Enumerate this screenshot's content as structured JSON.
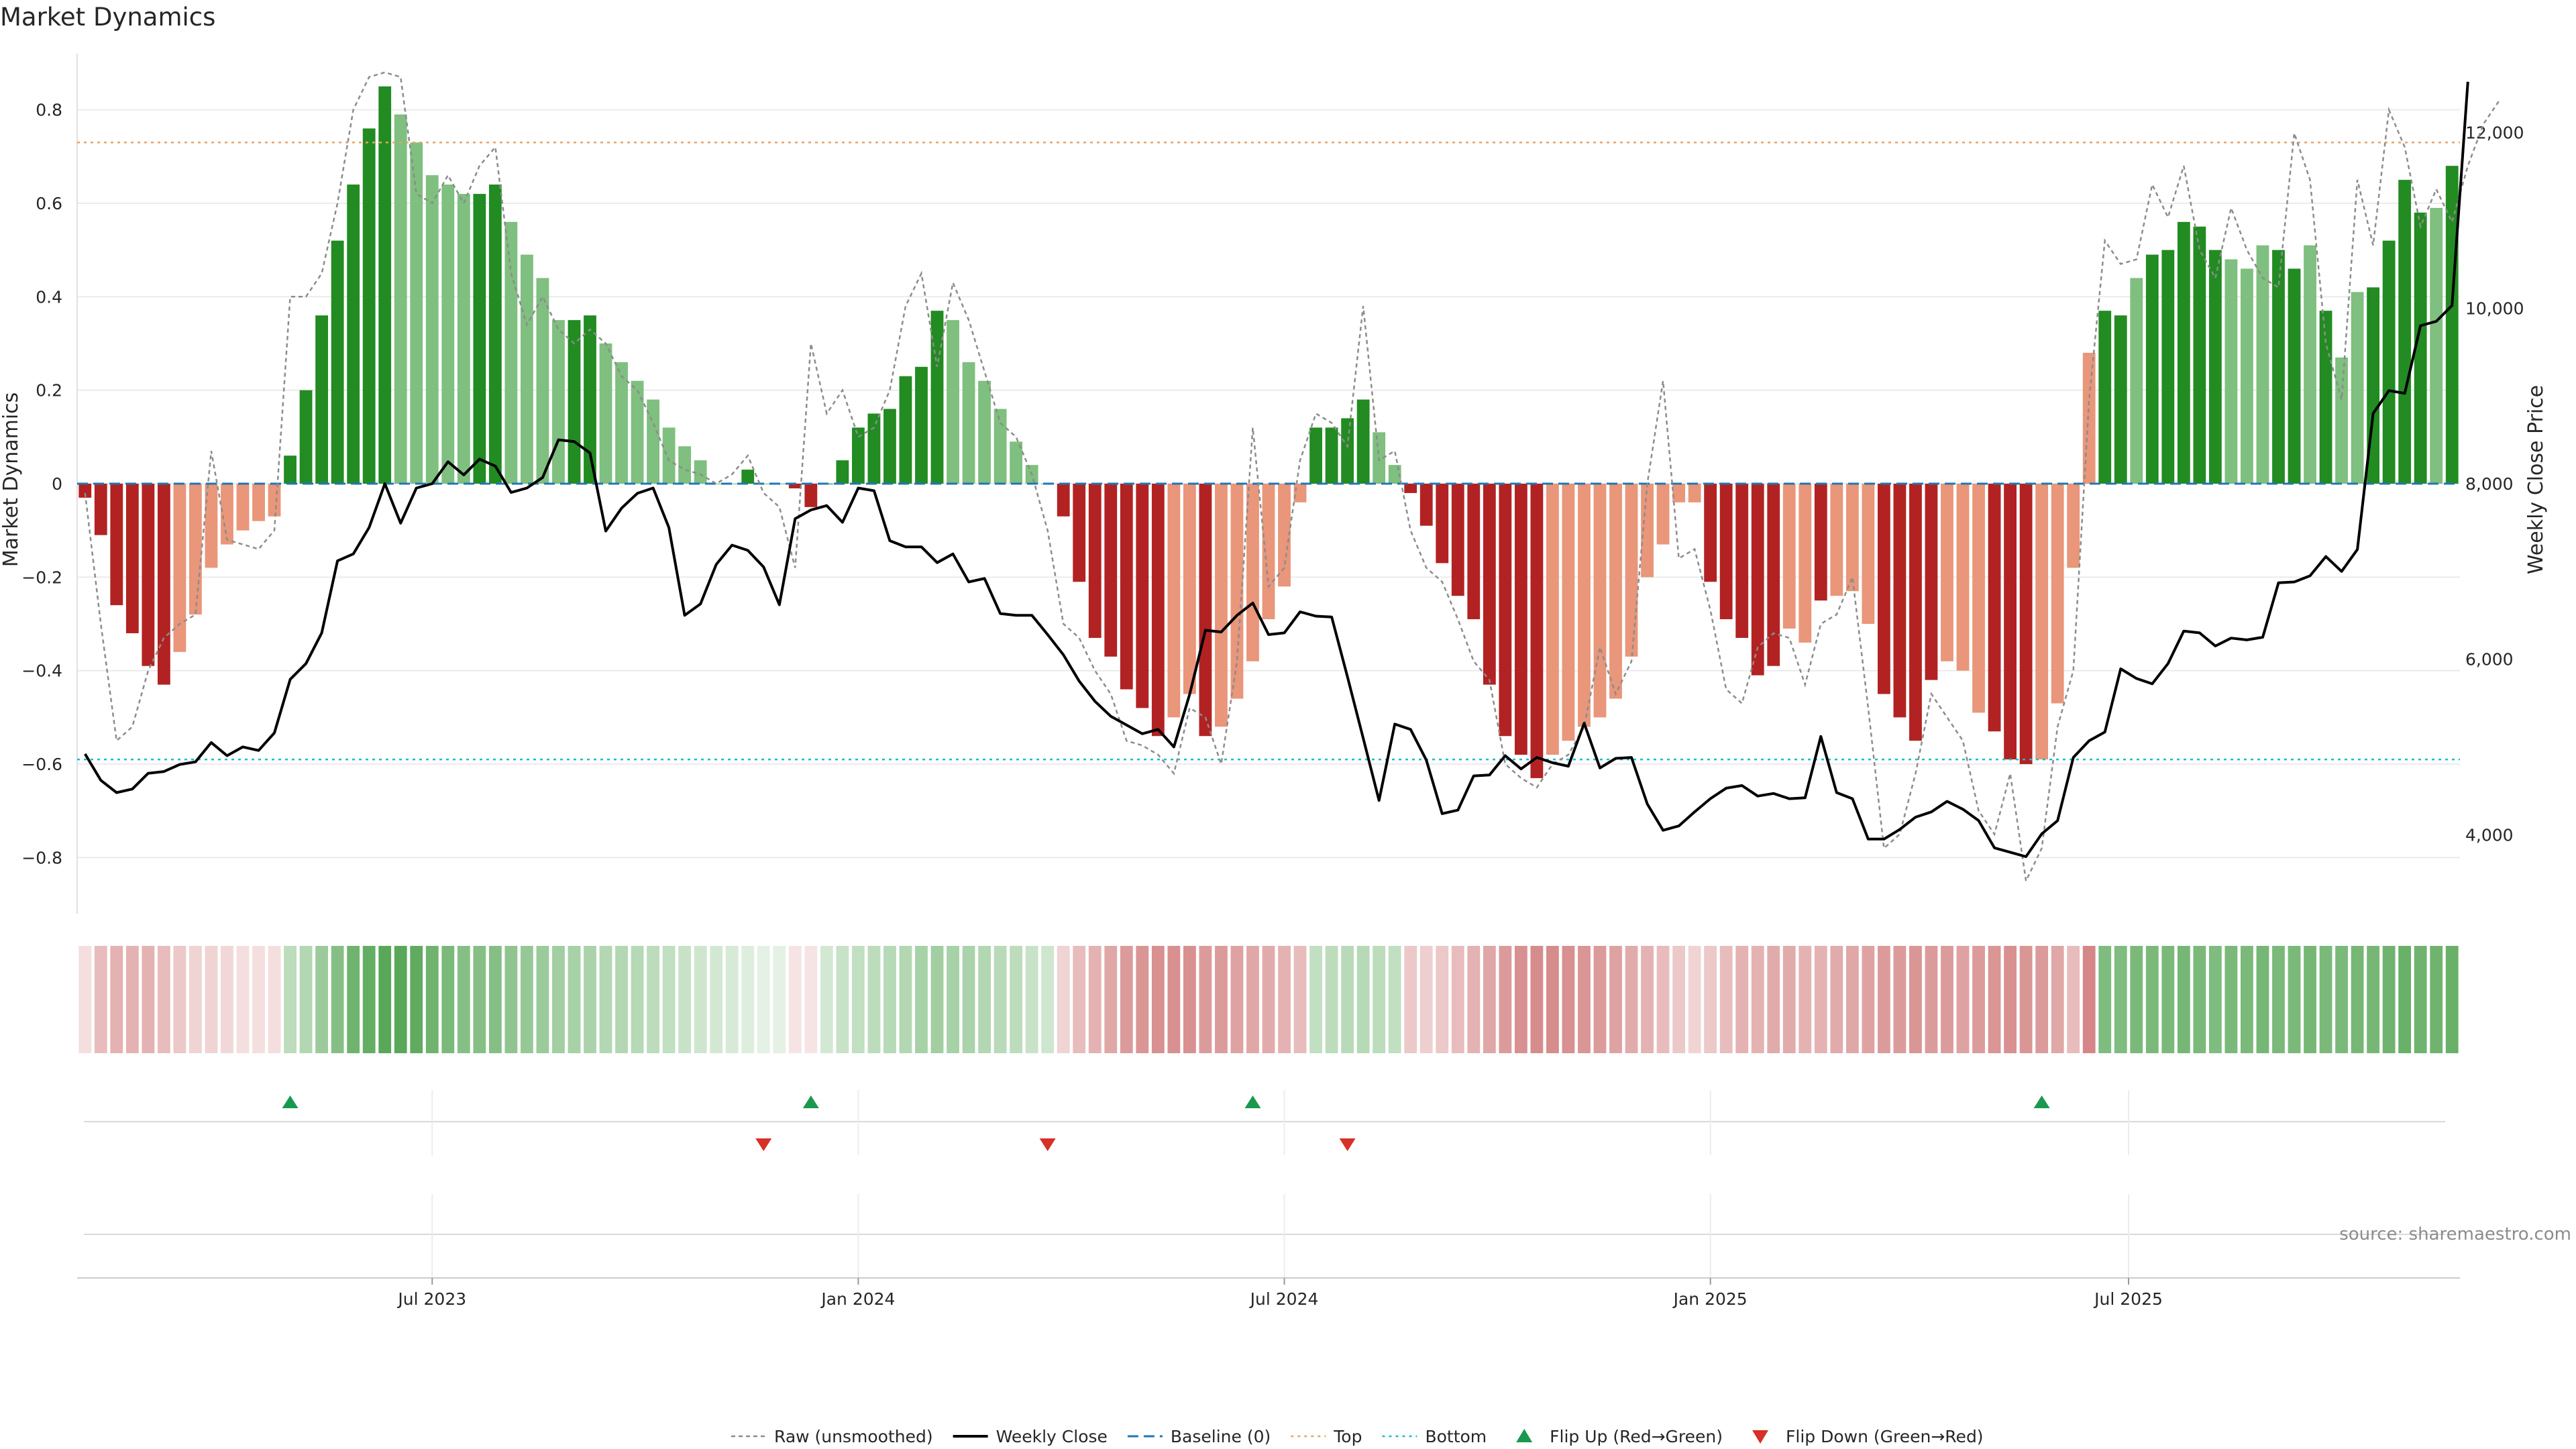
{
  "title": "Market Dynamics",
  "source_note": "source: sharemaestro.com",
  "colors": {
    "strong_green": "#228b22",
    "light_green": "#7fbf7f",
    "strong_red": "#b22222",
    "light_red": "#e9967a",
    "raw_line": "#8c8c8c",
    "close_line": "#000000",
    "baseline": "#1f77b4",
    "top": "#e4a46a",
    "bottom": "#17becf",
    "flip_up": "#1a9850",
    "flip_down": "#d73027"
  },
  "chart_data": {
    "type": "bar",
    "ylabel": "Market Dynamics",
    "y2label": "Weekly Close Price",
    "ylim": [
      -0.92,
      0.92
    ],
    "y2lim": [
      3100,
      12900
    ],
    "yticks": [
      -0.8,
      -0.6,
      -0.4,
      -0.2,
      0,
      0.2,
      0.4,
      0.6,
      0.8
    ],
    "ytick_labels": [
      "−0.8",
      "−0.6",
      "−0.4",
      "−0.2",
      "0",
      "0.2",
      "0.4",
      "0.6",
      "0.8"
    ],
    "y2ticks": [
      4000,
      6000,
      8000,
      10000,
      12000
    ],
    "y2tick_labels": [
      "4,000",
      "6,000",
      "8,000",
      "10,000",
      "12,000"
    ],
    "x_tick_labels": [
      "Jul 2023",
      "Jan 2024",
      "Jul 2024",
      "Jan 2025",
      "Jul 2025"
    ],
    "x_tick_weeks": [
      22.5,
      49.5,
      76.5,
      103.5,
      130
    ],
    "top_level": 0.73,
    "bottom_level": -0.59,
    "baseline": 0,
    "values": [
      -0.03,
      -0.11,
      -0.26,
      -0.32,
      -0.39,
      -0.43,
      -0.36,
      -0.28,
      -0.18,
      -0.13,
      -0.1,
      -0.08,
      -0.07,
      0.06,
      0.2,
      0.36,
      0.52,
      0.64,
      0.76,
      0.85,
      0.79,
      0.73,
      0.66,
      0.64,
      0.62,
      0.62,
      0.64,
      0.56,
      0.49,
      0.44,
      0.35,
      0.35,
      0.36,
      0.3,
      0.26,
      0.22,
      0.18,
      0.12,
      0.08,
      0.05,
      0,
      0,
      0.03,
      0,
      0,
      -0.01,
      -0.05,
      0,
      0.05,
      0.12,
      0.15,
      0.16,
      0.23,
      0.25,
      0.37,
      0.35,
      0.26,
      0.22,
      0.16,
      0.09,
      0.04,
      0,
      -0.07,
      -0.21,
      -0.33,
      -0.37,
      -0.44,
      -0.48,
      -0.54,
      -0.5,
      -0.45,
      -0.54,
      -0.52,
      -0.46,
      -0.38,
      -0.29,
      -0.22,
      -0.04,
      0.12,
      0.12,
      0.14,
      0.18,
      0.11,
      0.04,
      -0.02,
      -0.09,
      -0.17,
      -0.24,
      -0.29,
      -0.43,
      -0.54,
      -0.58,
      -0.63,
      -0.58,
      -0.55,
      -0.52,
      -0.5,
      -0.46,
      -0.37,
      -0.2,
      -0.13,
      -0.04,
      -0.04,
      -0.21,
      -0.29,
      -0.33,
      -0.41,
      -0.39,
      -0.31,
      -0.34,
      -0.25,
      -0.24,
      -0.23,
      -0.3,
      -0.45,
      -0.5,
      -0.55,
      -0.42,
      -0.38,
      -0.4,
      -0.49,
      -0.53,
      -0.59,
      -0.6,
      -0.59,
      -0.47,
      -0.18,
      0.28,
      0.37,
      0.36,
      0.44,
      0.49,
      0.5,
      0.56,
      0.55,
      0.5,
      0.48,
      0.46,
      0.51,
      0.5,
      0.46,
      0.51,
      0.37,
      0.27,
      0.41,
      0.42,
      0.52,
      0.65,
      0.58,
      0.59,
      0.68
    ],
    "colors": [
      "SR",
      "SR",
      "SR",
      "SR",
      "SR",
      "SR",
      "LR",
      "LR",
      "LR",
      "LR",
      "LR",
      "LR",
      "LR",
      "SG",
      "SG",
      "SG",
      "SG",
      "SG",
      "SG",
      "SG",
      "LG",
      "LG",
      "LG",
      "LG",
      "LG",
      "SG",
      "SG",
      "LG",
      "LG",
      "LG",
      "LG",
      "SG",
      "SG",
      "LG",
      "LG",
      "LG",
      "LG",
      "LG",
      "LG",
      "LG",
      "LG",
      "LG",
      "SG",
      "LG",
      "LG",
      "SR",
      "SR",
      "SG",
      "SG",
      "SG",
      "SG",
      "SG",
      "SG",
      "SG",
      "SG",
      "LG",
      "LG",
      "LG",
      "LG",
      "LG",
      "LG",
      "LG",
      "SR",
      "SR",
      "SR",
      "SR",
      "SR",
      "SR",
      "SR",
      "LR",
      "LR",
      "SR",
      "LR",
      "LR",
      "LR",
      "LR",
      "LR",
      "LR",
      "SG",
      "SG",
      "SG",
      "SG",
      "LG",
      "LG",
      "SR",
      "SR",
      "SR",
      "SR",
      "SR",
      "SR",
      "SR",
      "SR",
      "SR",
      "LR",
      "LR",
      "LR",
      "LR",
      "LR",
      "LR",
      "LR",
      "LR",
      "LR",
      "LR",
      "SR",
      "SR",
      "SR",
      "SR",
      "SR",
      "LR",
      "LR",
      "SR",
      "LR",
      "LR",
      "LR",
      "SR",
      "SR",
      "SR",
      "SR",
      "LR",
      "LR",
      "LR",
      "SR",
      "SR",
      "SR",
      "LR",
      "LR",
      "LR",
      "LR",
      "SG",
      "SG",
      "LG",
      "SG",
      "SG",
      "SG",
      "SG",
      "SG",
      "LG",
      "LG",
      "LG",
      "SG",
      "SG",
      "LG",
      "SG",
      "LG",
      "LG",
      "SG",
      "SG",
      "SG",
      "SG",
      "LG",
      "SG",
      "SG"
    ],
    "raw_values": [
      -0.02,
      -0.3,
      -0.55,
      -0.52,
      -0.4,
      -0.33,
      -0.3,
      -0.28,
      0.07,
      -0.12,
      -0.13,
      -0.14,
      -0.1,
      0.4,
      0.4,
      0.45,
      0.6,
      0.8,
      0.87,
      0.88,
      0.87,
      0.62,
      0.6,
      0.66,
      0.6,
      0.68,
      0.72,
      0.45,
      0.34,
      0.4,
      0.33,
      0.3,
      0.33,
      0.3,
      0.23,
      0.2,
      0.13,
      0.05,
      0.03,
      0.02,
      0.0,
      0.02,
      0.06,
      -0.02,
      -0.05,
      -0.18,
      0.3,
      0.15,
      0.2,
      0.1,
      0.12,
      0.2,
      0.38,
      0.45,
      0.25,
      0.43,
      0.35,
      0.24,
      0.13,
      0.1,
      0.02,
      -0.1,
      -0.3,
      -0.33,
      -0.4,
      -0.45,
      -0.55,
      -0.56,
      -0.58,
      -0.62,
      -0.48,
      -0.5,
      -0.6,
      -0.38,
      0.12,
      -0.22,
      -0.18,
      0.05,
      0.15,
      0.13,
      0.08,
      0.38,
      0.05,
      0.07,
      -0.1,
      -0.18,
      -0.21,
      -0.29,
      -0.38,
      -0.42,
      -0.6,
      -0.63,
      -0.65,
      -0.6,
      -0.58,
      -0.52,
      -0.35,
      -0.45,
      -0.38,
      0.0,
      0.22,
      -0.16,
      -0.14,
      -0.27,
      -0.44,
      -0.47,
      -0.35,
      -0.32,
      -0.33,
      -0.43,
      -0.3,
      -0.28,
      -0.2,
      -0.48,
      -0.78,
      -0.75,
      -0.62,
      -0.45,
      -0.5,
      -0.55,
      -0.7,
      -0.75,
      -0.62,
      -0.85,
      -0.78,
      -0.52,
      -0.4,
      0.18,
      0.52,
      0.47,
      0.48,
      0.64,
      0.57,
      0.68,
      0.5,
      0.44,
      0.59,
      0.5,
      0.44,
      0.42,
      0.75,
      0.65,
      0.3,
      0.18,
      0.65,
      0.51,
      0.8,
      0.72,
      0.55,
      0.63,
      0.56,
      0.68,
      0.77,
      0.82
    ],
    "close_values": [
      4920,
      4620,
      4480,
      4520,
      4700,
      4720,
      4800,
      4830,
      5050,
      4900,
      5000,
      4960,
      5160,
      5770,
      5950,
      6300,
      7120,
      7200,
      7500,
      8000,
      7550,
      7950,
      8000,
      8250,
      8100,
      8280,
      8200,
      7900,
      7950,
      8070,
      8500,
      8480,
      8350,
      7460,
      7720,
      7890,
      7950,
      7500,
      6500,
      6630,
      7080,
      7300,
      7240,
      7050,
      6620,
      7600,
      7700,
      7750,
      7560,
      7950,
      7920,
      7350,
      7280,
      7280,
      7100,
      7200,
      6880,
      6920,
      6520,
      6500,
      6500,
      6280,
      6050,
      5750,
      5520,
      5350,
      5250,
      5150,
      5200,
      5000,
      5600,
      6330,
      6310,
      6500,
      6640,
      6280,
      6300,
      6540,
      6490,
      6480,
      5800,
      5100,
      4390,
      5260,
      5200,
      4850,
      4240,
      4280,
      4670,
      4680,
      4900,
      4750,
      4880,
      4820,
      4780,
      5270,
      4760,
      4870,
      4880,
      4350,
      4050,
      4100,
      4260,
      4410,
      4530,
      4560,
      4440,
      4470,
      4410,
      4420,
      5120,
      4480,
      4410,
      3950,
      3950,
      4060,
      4200,
      4260,
      4380,
      4290,
      4160,
      3850,
      3800,
      3750,
      4010,
      4160,
      4880,
      5070,
      5170,
      5890,
      5780,
      5720,
      5950,
      6320,
      6300,
      6150,
      6240,
      6220,
      6250,
      6870,
      6880,
      6950,
      7170,
      7000,
      7250,
      8800,
      9060,
      9030,
      9800,
      9850,
      10030,
      12580
    ],
    "regime_levels": [
      0.15,
      0.3,
      0.35,
      0.35,
      0.35,
      0.3,
      0.25,
      0.2,
      0.2,
      0.18,
      0.15,
      0.15,
      0.15,
      0.3,
      0.35,
      0.45,
      0.55,
      0.65,
      0.7,
      0.75,
      0.75,
      0.72,
      0.65,
      0.6,
      0.55,
      0.55,
      0.55,
      0.5,
      0.48,
      0.45,
      0.42,
      0.4,
      0.38,
      0.35,
      0.35,
      0.33,
      0.3,
      0.28,
      0.25,
      0.22,
      0.2,
      0.18,
      0.15,
      0.12,
      0.12,
      0.12,
      0.12,
      0.2,
      0.25,
      0.28,
      0.3,
      0.33,
      0.35,
      0.4,
      0.42,
      0.4,
      0.38,
      0.35,
      0.32,
      0.3,
      0.25,
      0.22,
      0.2,
      0.3,
      0.35,
      0.4,
      0.45,
      0.48,
      0.5,
      0.5,
      0.5,
      0.45,
      0.45,
      0.42,
      0.4,
      0.38,
      0.35,
      0.3,
      0.28,
      0.3,
      0.32,
      0.33,
      0.3,
      0.28,
      0.25,
      0.22,
      0.25,
      0.3,
      0.35,
      0.4,
      0.45,
      0.5,
      0.52,
      0.52,
      0.5,
      0.48,
      0.45,
      0.42,
      0.38,
      0.35,
      0.3,
      0.25,
      0.2,
      0.25,
      0.3,
      0.35,
      0.35,
      0.38,
      0.38,
      0.35,
      0.35,
      0.38,
      0.4,
      0.42,
      0.45,
      0.45,
      0.48,
      0.45,
      0.45,
      0.42,
      0.45,
      0.48,
      0.5,
      0.48,
      0.45,
      0.4,
      0.3,
      0.55,
      0.58,
      0.58,
      0.6,
      0.6,
      0.6,
      0.62,
      0.6,
      0.58,
      0.6,
      0.6,
      0.62,
      0.6,
      0.6,
      0.62,
      0.6,
      0.6,
      0.62,
      0.62,
      0.65,
      0.68,
      0.65,
      0.65,
      0.68
    ],
    "flip_up_weeks": [
      13,
      46,
      74,
      124
    ],
    "flip_down_weeks": [
      43,
      61,
      80
    ],
    "legend": [
      {
        "label": "Raw (unsmoothed)",
        "kind": "raw"
      },
      {
        "label": "Weekly Close",
        "kind": "close"
      },
      {
        "label": "Baseline (0)",
        "kind": "baseline"
      },
      {
        "label": "Top",
        "kind": "top"
      },
      {
        "label": "Bottom",
        "kind": "bottom"
      },
      {
        "label": "Flip Up (Red→Green)",
        "kind": "flipup"
      },
      {
        "label": "Flip Down (Green→Red)",
        "kind": "flipdown"
      }
    ]
  }
}
